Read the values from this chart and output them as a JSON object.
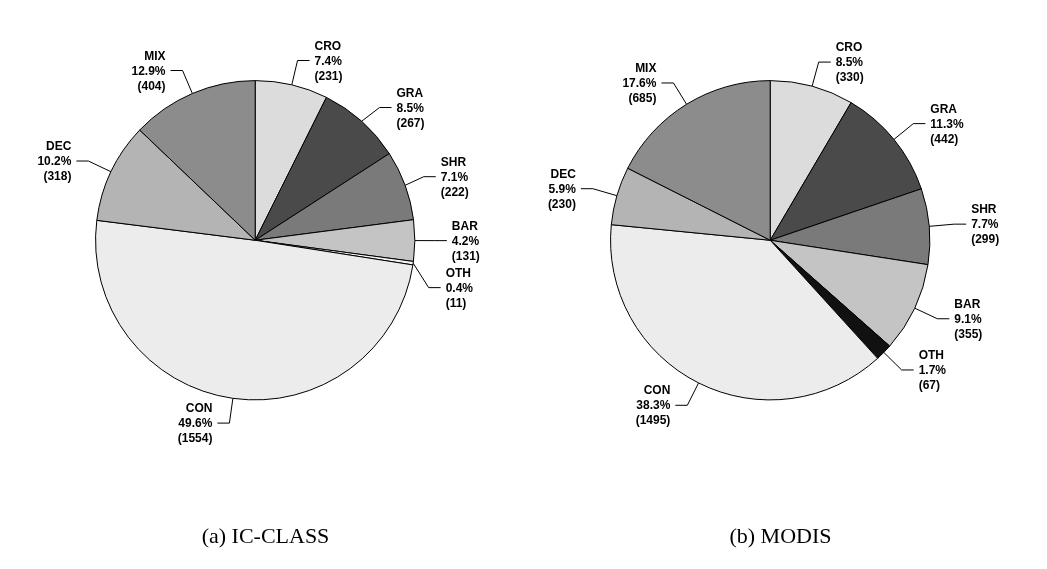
{
  "chart_data": [
    {
      "type": "pie",
      "title": "(a) IC-CLASS",
      "categories": [
        "CRO",
        "GRA",
        "SHR",
        "BAR",
        "OTH",
        "CON",
        "DEC",
        "MIX"
      ],
      "values": [
        231,
        267,
        222,
        131,
        11,
        1554,
        318,
        404
      ],
      "value_labels": [
        "7.4%\n(231)",
        "8.5%\n(267)",
        "7.1%\n(222)",
        "4.2%\n(131)",
        "0.4%\n(11)",
        "49.6%\n(1554)",
        "10.2%\n(318)",
        "12.9%\n(404)"
      ],
      "colors": [
        "#dcdcdc",
        "#4a4a4a",
        "#7a7a7a",
        "#c4c4c4",
        "#f4f4f4",
        "#ececec",
        "#b4b4b4",
        "#8c8c8c"
      ]
    },
    {
      "type": "pie",
      "title": "(b) MODIS",
      "categories": [
        "CRO",
        "GRA",
        "SHR",
        "BAR",
        "OTH",
        "CON",
        "DEC",
        "MIX"
      ],
      "values": [
        330,
        442,
        299,
        355,
        67,
        1495,
        230,
        685
      ],
      "value_labels": [
        "8.5%\n(330)",
        "11.3%\n(442)",
        "7.7%\n(299)",
        "9.1%\n(355)",
        "1.7%\n(67)",
        "38.3%\n(1495)",
        "5.9%\n(230)",
        "17.6%\n(685)"
      ],
      "colors": [
        "#dcdcdc",
        "#4a4a4a",
        "#7a7a7a",
        "#c4c4c4",
        "#111111",
        "#ececec",
        "#b4b4b4",
        "#8c8c8c"
      ]
    }
  ]
}
